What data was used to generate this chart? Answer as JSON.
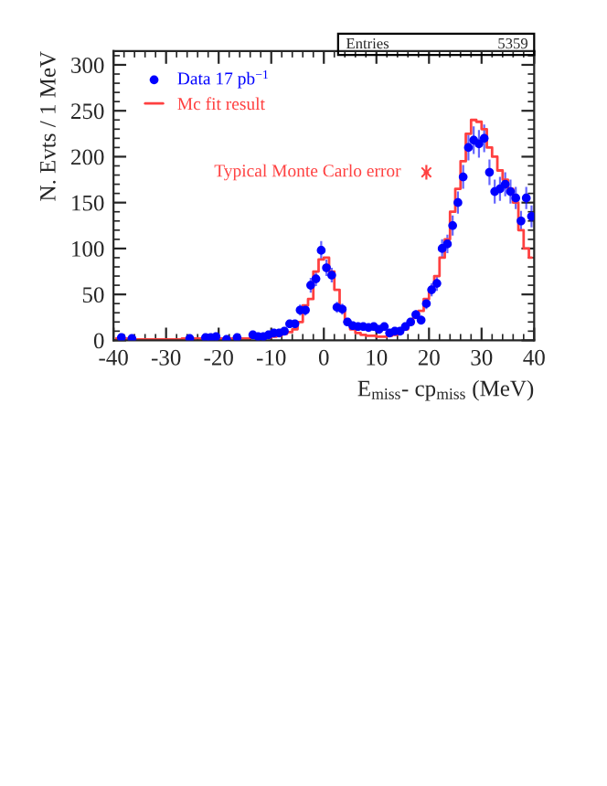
{
  "chart_data": {
    "type": "scatter",
    "xlabel": "E$_{miss}$- cp$_{miss}$ (MeV)",
    "ylabel": "N. Evts / 1 MeV",
    "annotations": [
      "Entries",
      "5359"
    ],
    "xlim": [
      -40,
      40
    ],
    "xticks": [
      -40,
      -30,
      -20,
      -10,
      0,
      10,
      20,
      30,
      40
    ],
    "ylim": [
      0,
      315
    ],
    "yticks": [
      0,
      50,
      100,
      150,
      200,
      250,
      300
    ],
    "legend": "top left",
    "grid": false,
    "series": [
      {
        "name": "Data 17 pb$^{−1}$",
        "marker": "circle",
        "color": "#0000ff",
        "x": [
          -38.5,
          -36.5,
          -25.5,
          -22.5,
          -21.5,
          -20.5,
          -18.5,
          -16.5,
          -13.5,
          -12.5,
          -11.5,
          -10.5,
          -9.5,
          -8.5,
          -7.5,
          -6.5,
          -5.5,
          -4.5,
          -3.5,
          -2.5,
          -1.5,
          -0.5,
          0.5,
          1.5,
          2.5,
          3.5,
          4.5,
          5.5,
          6.5,
          7.5,
          8.5,
          9.5,
          10.5,
          11.5,
          12.5,
          13.5,
          14.5,
          15.5,
          16.5,
          17.5,
          18.5,
          19.5,
          20.5,
          21.5,
          22.5,
          23.5,
          24.5,
          25.5,
          26.5,
          27.5,
          28.5,
          29.5,
          30.5,
          31.5,
          32.5,
          33.5,
          34.5,
          35.5,
          36.5,
          37.5,
          38.5,
          39.5
        ],
        "values": [
          3,
          2,
          2,
          3,
          3,
          4,
          1,
          3,
          6,
          4,
          4,
          6,
          8,
          8,
          10,
          18,
          18,
          33,
          33,
          60,
          67,
          98,
          79,
          71,
          36,
          34,
          20,
          16,
          15,
          15,
          14,
          15,
          12,
          15,
          8,
          10,
          10,
          15,
          20,
          28,
          22,
          40,
          55,
          62,
          100,
          105,
          125,
          150,
          178,
          210,
          218,
          214,
          220,
          183,
          162,
          165,
          170,
          162,
          155,
          130,
          155,
          135
        ],
        "errors": [
          2,
          1,
          1,
          2,
          2,
          2,
          1,
          2,
          2,
          2,
          2,
          2,
          3,
          3,
          3,
          4,
          4,
          6,
          6,
          8,
          8,
          10,
          9,
          8,
          6,
          6,
          4,
          4,
          4,
          4,
          4,
          4,
          3,
          4,
          3,
          3,
          3,
          4,
          4,
          5,
          5,
          6,
          7,
          8,
          10,
          10,
          11,
          12,
          13,
          14,
          15,
          15,
          15,
          14,
          13,
          13,
          13,
          13,
          12,
          11,
          12,
          12
        ]
      },
      {
        "name": "Mc fit result",
        "type": "step",
        "color": "#ff4040",
        "x": [
          -39.5,
          -38.5,
          -37.5,
          -36.5,
          -35.5,
          -34.5,
          -33.5,
          -32.5,
          -31.5,
          -30.5,
          -29.5,
          -28.5,
          -27.5,
          -26.5,
          -25.5,
          -24.5,
          -23.5,
          -22.5,
          -21.5,
          -20.5,
          -19.5,
          -18.5,
          -17.5,
          -16.5,
          -15.5,
          -14.5,
          -13.5,
          -12.5,
          -11.5,
          -10.5,
          -9.5,
          -8.5,
          -7.5,
          -6.5,
          -5.5,
          -4.5,
          -3.5,
          -2.5,
          -1.5,
          -0.5,
          0.5,
          1.5,
          2.5,
          3.5,
          4.5,
          5.5,
          6.5,
          7.5,
          8.5,
          9.5,
          10.5,
          11.5,
          12.5,
          13.5,
          14.5,
          15.5,
          16.5,
          17.5,
          18.5,
          19.5,
          20.5,
          21.5,
          22.5,
          23.5,
          24.5,
          25.5,
          26.5,
          27.5,
          28.5,
          29.5,
          30.5,
          31.5,
          32.5,
          33.5,
          34.5,
          35.5,
          36.5,
          37.5,
          38.5,
          39.5
        ],
        "values": [
          2,
          2,
          2,
          1,
          1,
          1,
          1,
          1,
          1,
          1,
          1,
          1,
          1,
          2,
          2,
          2,
          2,
          2,
          2,
          2,
          2,
          2,
          2,
          2,
          2,
          2,
          3,
          3,
          3,
          3,
          4,
          5,
          7,
          9,
          12,
          20,
          38,
          45,
          75,
          88,
          90,
          75,
          55,
          35,
          20,
          12,
          8,
          6,
          5,
          5,
          4,
          4,
          5,
          6,
          8,
          12,
          18,
          25,
          32,
          45,
          55,
          70,
          90,
          110,
          140,
          165,
          195,
          225,
          240,
          238,
          230,
          210,
          200,
          185,
          175,
          165,
          150,
          120,
          100,
          90
        ]
      },
      {
        "name": "Typical Monte Carlo error",
        "marker": "cross",
        "color": "#ff4040",
        "x": [
          19.5
        ],
        "values": [
          183
        ],
        "errors": [
          8
        ],
        "xerrors": [
          0.5
        ]
      }
    ]
  }
}
